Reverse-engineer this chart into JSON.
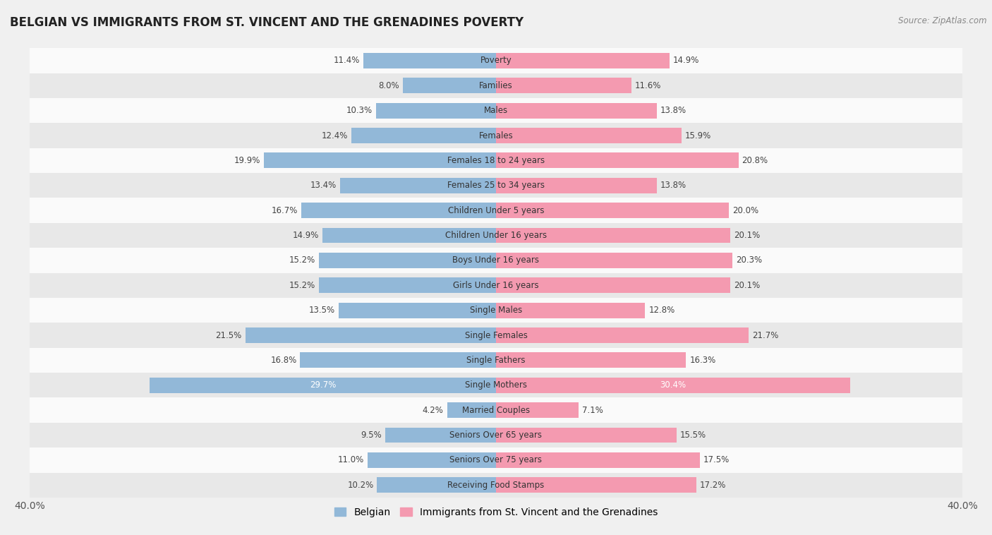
{
  "title": "BELGIAN VS IMMIGRANTS FROM ST. VINCENT AND THE GRENADINES POVERTY",
  "source": "Source: ZipAtlas.com",
  "categories": [
    "Poverty",
    "Families",
    "Males",
    "Females",
    "Females 18 to 24 years",
    "Females 25 to 34 years",
    "Children Under 5 years",
    "Children Under 16 years",
    "Boys Under 16 years",
    "Girls Under 16 years",
    "Single Males",
    "Single Females",
    "Single Fathers",
    "Single Mothers",
    "Married Couples",
    "Seniors Over 65 years",
    "Seniors Over 75 years",
    "Receiving Food Stamps"
  ],
  "belgian_values": [
    11.4,
    8.0,
    10.3,
    12.4,
    19.9,
    13.4,
    16.7,
    14.9,
    15.2,
    15.2,
    13.5,
    21.5,
    16.8,
    29.7,
    4.2,
    9.5,
    11.0,
    10.2
  ],
  "immigrant_values": [
    14.9,
    11.6,
    13.8,
    15.9,
    20.8,
    13.8,
    20.0,
    20.1,
    20.3,
    20.1,
    12.8,
    21.7,
    16.3,
    30.4,
    7.1,
    15.5,
    17.5,
    17.2
  ],
  "belgian_color": "#92b8d8",
  "immigrant_color": "#f49ab0",
  "belgian_label": "Belgian",
  "immigrant_label": "Immigrants from St. Vincent and the Grenadines",
  "xlim": 40.0,
  "bar_height": 0.62,
  "background_color": "#f0f0f0",
  "row_light_color": "#fafafa",
  "row_dark_color": "#e8e8e8",
  "label_fontsize": 8.5,
  "title_fontsize": 12,
  "source_fontsize": 8.5
}
